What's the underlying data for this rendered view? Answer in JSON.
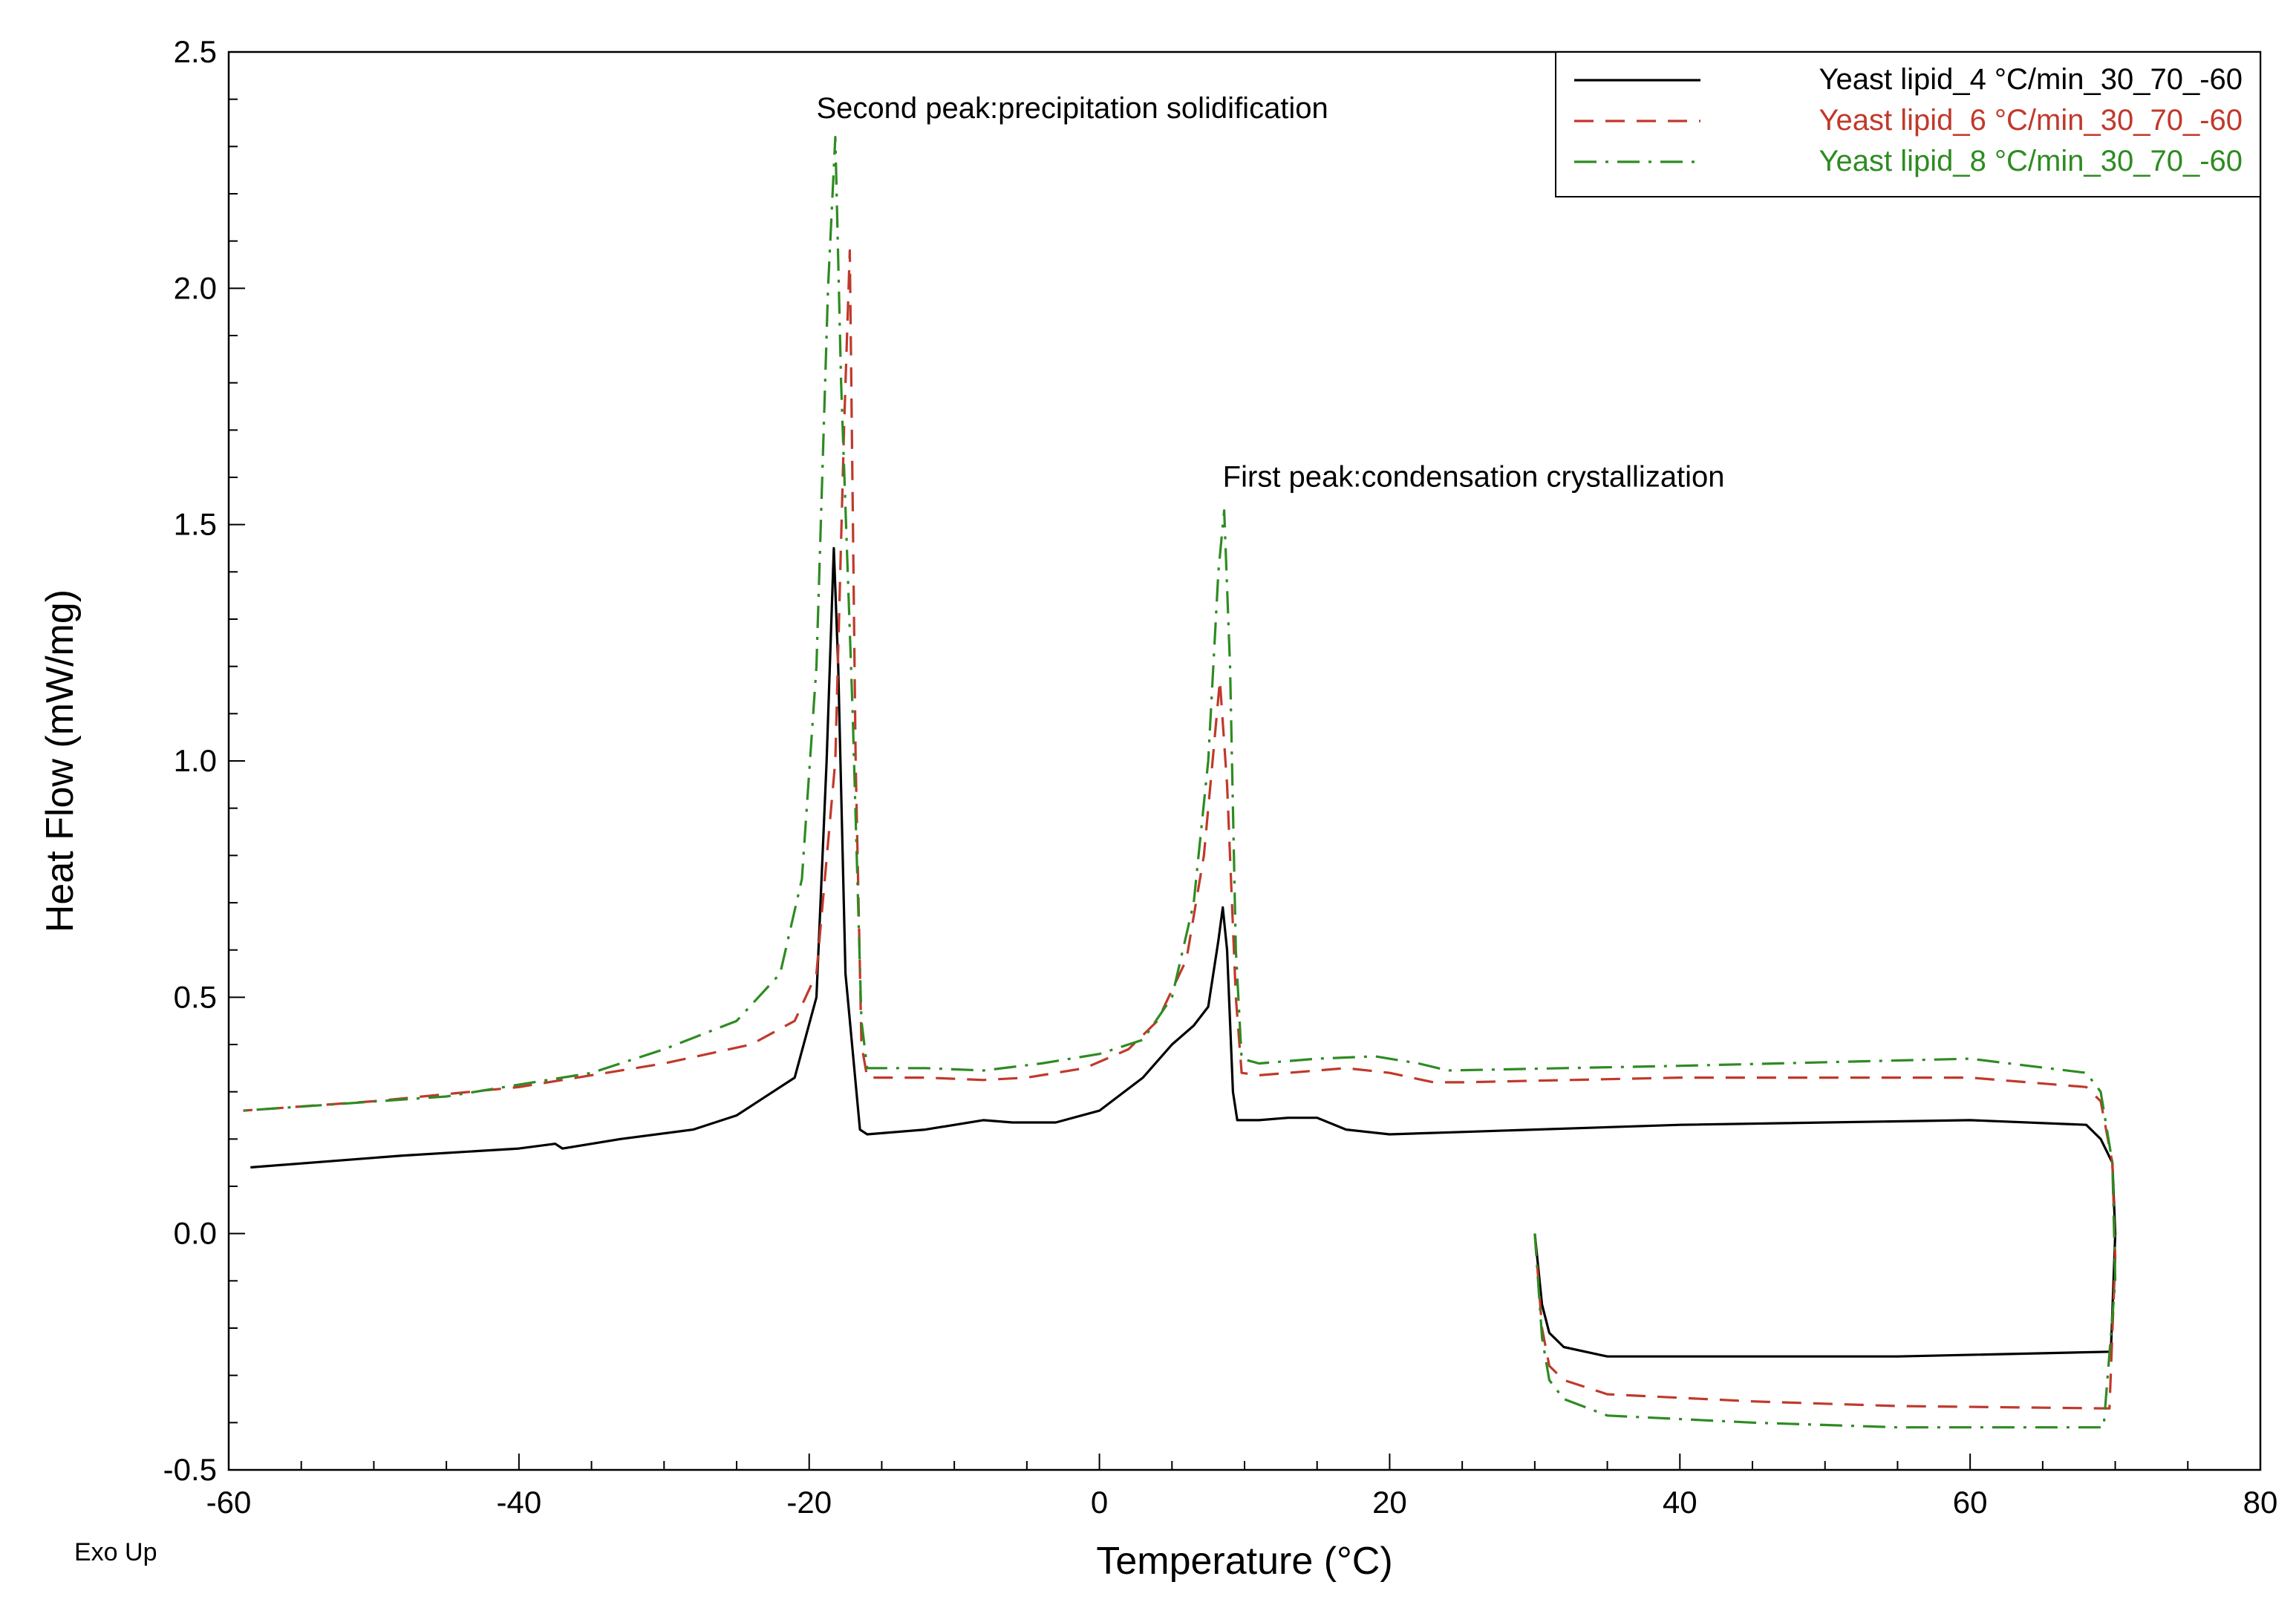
{
  "chart_data": {
    "type": "line",
    "title": "",
    "xlabel": "Temperature (°C)",
    "ylabel": "Heat Flow (mW/mg)",
    "corner_label": "Exo Up",
    "xlim": [
      -60,
      80
    ],
    "ylim": [
      -0.5,
      2.5
    ],
    "xticks": [
      -60,
      -40,
      -20,
      0,
      20,
      40,
      60,
      80
    ],
    "xtick_labels": [
      "-60",
      "-40",
      "-20",
      "0",
      "20",
      "40",
      "60",
      "80"
    ],
    "yticks": [
      -0.5,
      0.0,
      0.5,
      1.0,
      1.5,
      2.0,
      2.5
    ],
    "ytick_labels": [
      "-0.5",
      "0.0",
      "0.5",
      "1.0",
      "1.5",
      "2.0",
      "2.5"
    ],
    "grid": false,
    "legend_position": "top-right",
    "annotations": [
      {
        "text": "Second peak:precipitation solidification",
        "x": -19.5,
        "y": 2.36
      },
      {
        "text": "First peak:condensation crystallization",
        "x": 8.5,
        "y": 1.58
      }
    ],
    "series": [
      {
        "name": "Yeast lipid_4 °C/min_30_70_-60",
        "color": "#000000",
        "dash": "solid",
        "segments": [
          [
            [
              30,
              0.0
            ],
            [
              30.5,
              -0.15
            ],
            [
              31,
              -0.21
            ],
            [
              32,
              -0.24
            ],
            [
              35,
              -0.26
            ],
            [
              45,
              -0.26
            ],
            [
              55,
              -0.26
            ],
            [
              69.7,
              -0.25
            ],
            [
              70,
              0.0
            ],
            [
              69.8,
              0.15
            ],
            [
              69,
              0.2
            ],
            [
              68,
              0.23
            ],
            [
              60,
              0.24
            ],
            [
              40,
              0.23
            ],
            [
              25,
              0.215
            ],
            [
              20,
              0.21
            ],
            [
              17,
              0.22
            ],
            [
              15,
              0.245
            ],
            [
              13,
              0.245
            ],
            [
              11,
              0.24
            ],
            [
              9.5,
              0.24
            ],
            [
              9.2,
              0.3
            ],
            [
              8.8,
              0.6
            ],
            [
              8.5,
              0.69
            ],
            [
              8.2,
              0.62
            ],
            [
              7.5,
              0.48
            ],
            [
              6.5,
              0.44
            ],
            [
              5,
              0.4
            ],
            [
              3,
              0.33
            ],
            [
              0,
              0.26
            ],
            [
              -3,
              0.235
            ],
            [
              -6,
              0.235
            ],
            [
              -8,
              0.24
            ],
            [
              -12,
              0.22
            ],
            [
              -16,
              0.21
            ],
            [
              -16.5,
              0.22
            ],
            [
              -17.5,
              0.55
            ],
            [
              -18,
              1.2
            ],
            [
              -18.3,
              1.45
            ],
            [
              -18.8,
              1.0
            ],
            [
              -19.5,
              0.5
            ],
            [
              -21,
              0.33
            ],
            [
              -25,
              0.25
            ],
            [
              -28,
              0.22
            ],
            [
              -33,
              0.2
            ],
            [
              -37,
              0.18
            ],
            [
              -37.5,
              0.19
            ],
            [
              -40,
              0.18
            ],
            [
              -48,
              0.165
            ],
            [
              -58.5,
              0.14
            ]
          ]
        ]
      },
      {
        "name": "Yeast lipid_6 °C/min_30_70_-60",
        "color": "#c0392b",
        "dash": "dashed",
        "segments": [
          [
            [
              30,
              0.0
            ],
            [
              30.5,
              -0.2
            ],
            [
              31,
              -0.28
            ],
            [
              32,
              -0.31
            ],
            [
              35,
              -0.34
            ],
            [
              45,
              -0.355
            ],
            [
              55,
              -0.365
            ],
            [
              69.6,
              -0.37
            ],
            [
              70,
              -0.05
            ],
            [
              69.8,
              0.15
            ],
            [
              69,
              0.28
            ],
            [
              68,
              0.31
            ],
            [
              60,
              0.33
            ],
            [
              40,
              0.33
            ],
            [
              25,
              0.32
            ],
            [
              23,
              0.32
            ],
            [
              20,
              0.34
            ],
            [
              17,
              0.35
            ],
            [
              13,
              0.34
            ],
            [
              11,
              0.335
            ],
            [
              9.8,
              0.34
            ],
            [
              9.4,
              0.5
            ],
            [
              8.8,
              0.95
            ],
            [
              8.3,
              1.17
            ],
            [
              7.8,
              1.0
            ],
            [
              7.2,
              0.8
            ],
            [
              6,
              0.58
            ],
            [
              4,
              0.45
            ],
            [
              2,
              0.39
            ],
            [
              -1,
              0.35
            ],
            [
              -5,
              0.33
            ],
            [
              -8,
              0.325
            ],
            [
              -12,
              0.33
            ],
            [
              -16,
              0.33
            ],
            [
              -16.4,
              0.4
            ],
            [
              -16.8,
              1.0
            ],
            [
              -17.2,
              2.08
            ],
            [
              -17.6,
              1.7
            ],
            [
              -18.2,
              1.0
            ],
            [
              -19.5,
              0.55
            ],
            [
              -21,
              0.45
            ],
            [
              -24,
              0.4
            ],
            [
              -30,
              0.36
            ],
            [
              -40,
              0.31
            ],
            [
              -50,
              0.28
            ],
            [
              -59,
              0.26
            ]
          ]
        ]
      },
      {
        "name": "Yeast lipid_8 °C/min_30_70_-60",
        "color": "#2e8b22",
        "dash": "dashdot",
        "segments": [
          [
            [
              30,
              0.0
            ],
            [
              30.5,
              -0.22
            ],
            [
              31,
              -0.31
            ],
            [
              32,
              -0.35
            ],
            [
              35,
              -0.385
            ],
            [
              45,
              -0.4
            ],
            [
              55,
              -0.41
            ],
            [
              69.2,
              -0.41
            ],
            [
              70,
              -0.1
            ],
            [
              69.8,
              0.15
            ],
            [
              69,
              0.3
            ],
            [
              68,
              0.34
            ],
            [
              60,
              0.37
            ],
            [
              40,
              0.355
            ],
            [
              24,
              0.345
            ],
            [
              22,
              0.36
            ],
            [
              19,
              0.375
            ],
            [
              15,
              0.37
            ],
            [
              11,
              0.36
            ],
            [
              9.8,
              0.37
            ],
            [
              9.4,
              0.6
            ],
            [
              9,
              1.2
            ],
            [
              8.6,
              1.53
            ],
            [
              8.2,
              1.4
            ],
            [
              7.5,
              1.0
            ],
            [
              6.5,
              0.7
            ],
            [
              5,
              0.5
            ],
            [
              3,
              0.41
            ],
            [
              0,
              0.38
            ],
            [
              -4,
              0.36
            ],
            [
              -8,
              0.345
            ],
            [
              -12,
              0.35
            ],
            [
              -16,
              0.35
            ],
            [
              -16.4,
              0.45
            ],
            [
              -17,
              1.1
            ],
            [
              -17.8,
              1.8
            ],
            [
              -18.2,
              2.32
            ],
            [
              -18.7,
              2.0
            ],
            [
              -19.5,
              1.2
            ],
            [
              -20.5,
              0.75
            ],
            [
              -22,
              0.55
            ],
            [
              -25,
              0.45
            ],
            [
              -30,
              0.39
            ],
            [
              -35,
              0.34
            ],
            [
              -45,
              0.29
            ],
            [
              -59,
              0.26
            ]
          ]
        ]
      }
    ]
  }
}
